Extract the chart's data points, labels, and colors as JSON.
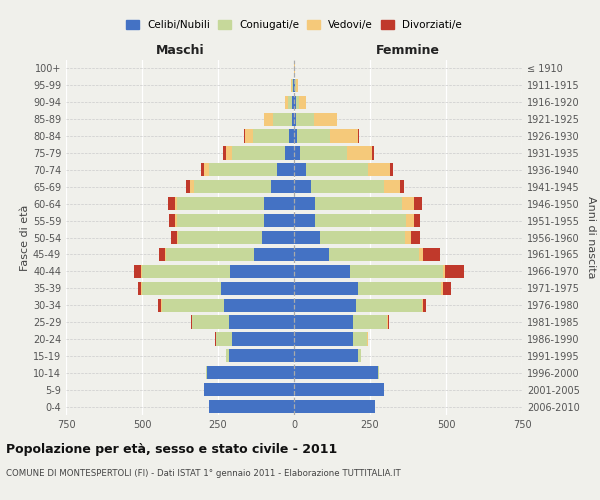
{
  "age_groups": [
    "0-4",
    "5-9",
    "10-14",
    "15-19",
    "20-24",
    "25-29",
    "30-34",
    "35-39",
    "40-44",
    "45-49",
    "50-54",
    "55-59",
    "60-64",
    "65-69",
    "70-74",
    "75-79",
    "80-84",
    "85-89",
    "90-94",
    "95-99",
    "100+"
  ],
  "birth_years": [
    "2006-2010",
    "2001-2005",
    "1996-2000",
    "1991-1995",
    "1986-1990",
    "1981-1985",
    "1976-1980",
    "1971-1975",
    "1966-1970",
    "1961-1965",
    "1956-1960",
    "1951-1955",
    "1946-1950",
    "1941-1945",
    "1936-1940",
    "1931-1935",
    "1926-1930",
    "1921-1925",
    "1916-1920",
    "1911-1915",
    "≤ 1910"
  ],
  "males": {
    "celibe": [
      280,
      295,
      285,
      215,
      205,
      215,
      230,
      240,
      210,
      130,
      105,
      100,
      100,
      75,
      55,
      30,
      15,
      8,
      5,
      2,
      0
    ],
    "coniugato": [
      0,
      2,
      5,
      10,
      50,
      120,
      205,
      260,
      290,
      290,
      275,
      285,
      285,
      255,
      225,
      175,
      120,
      60,
      15,
      5,
      0
    ],
    "vedovo": [
      0,
      0,
      0,
      0,
      2,
      2,
      2,
      2,
      3,
      5,
      5,
      5,
      8,
      12,
      15,
      20,
      25,
      30,
      10,
      3,
      0
    ],
    "divorziato": [
      0,
      0,
      0,
      0,
      2,
      2,
      10,
      12,
      22,
      18,
      18,
      20,
      20,
      12,
      12,
      8,
      5,
      0,
      0,
      0,
      0
    ]
  },
  "females": {
    "nubile": [
      265,
      295,
      275,
      210,
      195,
      195,
      205,
      210,
      185,
      115,
      85,
      70,
      70,
      55,
      40,
      20,
      10,
      5,
      5,
      2,
      0
    ],
    "coniugata": [
      0,
      2,
      5,
      10,
      45,
      110,
      215,
      275,
      305,
      295,
      280,
      300,
      285,
      240,
      205,
      155,
      110,
      60,
      10,
      3,
      0
    ],
    "vedova": [
      0,
      0,
      0,
      0,
      2,
      3,
      3,
      5,
      8,
      15,
      20,
      25,
      40,
      55,
      70,
      80,
      90,
      75,
      25,
      8,
      2
    ],
    "divorziata": [
      0,
      0,
      0,
      0,
      2,
      3,
      12,
      25,
      60,
      55,
      30,
      20,
      25,
      12,
      12,
      8,
      5,
      0,
      0,
      0,
      0
    ]
  },
  "color_celibe": "#4472c4",
  "color_coniugato": "#c6d89a",
  "color_vedovo": "#f5c97a",
  "color_divorziato": "#c0392b",
  "xlim": 750,
  "title": "Popolazione per età, sesso e stato civile - 2011",
  "subtitle": "COMUNE DI MONTESPERTOLI (FI) - Dati ISTAT 1° gennaio 2011 - Elaborazione TUTTITALIA.IT",
  "xlabel_left": "Maschi",
  "xlabel_right": "Femmine",
  "ylabel_left": "Fasce di età",
  "ylabel_right": "Anni di nascita",
  "legend_labels": [
    "Celibi/Nubili",
    "Coniugati/e",
    "Vedovi/e",
    "Divorziati/e"
  ],
  "bg_color": "#f0f0eb"
}
